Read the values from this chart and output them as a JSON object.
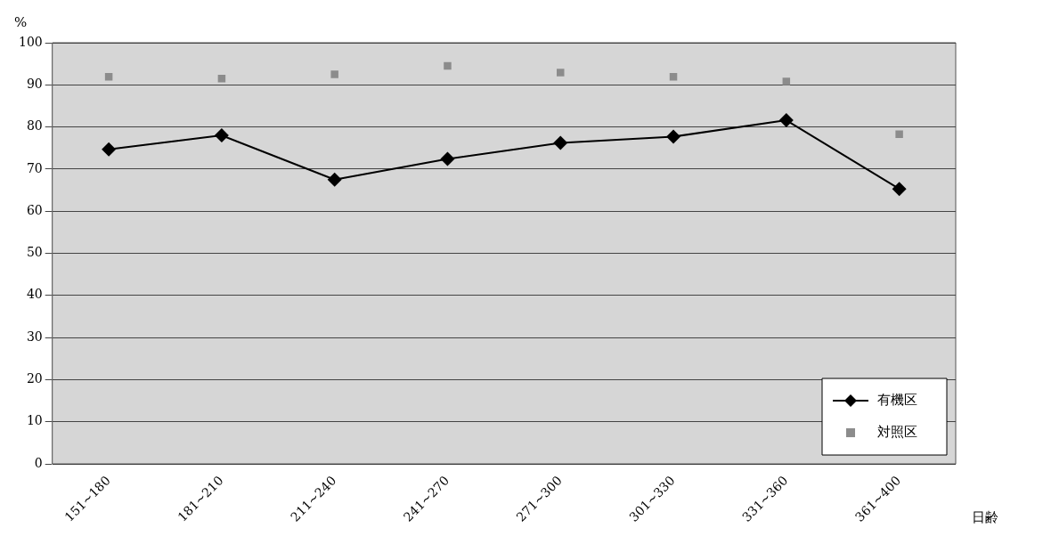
{
  "chart_data": {
    "type": "line",
    "xlabel": "日齢",
    "ylabel": "%",
    "categories": [
      "151~180",
      "181~210",
      "211~240",
      "241~270",
      "271~300",
      "301~330",
      "331~360",
      "361~400"
    ],
    "series": [
      {
        "name": "有機区",
        "type": "line",
        "color": "#000000",
        "marker": "diamond",
        "values": [
          74.7,
          78.0,
          67.5,
          72.4,
          76.2,
          77.7,
          81.6,
          65.3
        ]
      },
      {
        "name": "対照区",
        "type": "scatter",
        "color": "#8c8c8c",
        "marker": "square",
        "values": [
          91.9,
          91.5,
          92.5,
          94.5,
          92.9,
          91.9,
          90.8,
          78.3
        ]
      }
    ],
    "ylim": [
      0,
      100
    ],
    "yticks": [
      0,
      10,
      20,
      30,
      40,
      50,
      60,
      70,
      80,
      90,
      100
    ],
    "grid": "y",
    "legend": "bottom right"
  }
}
